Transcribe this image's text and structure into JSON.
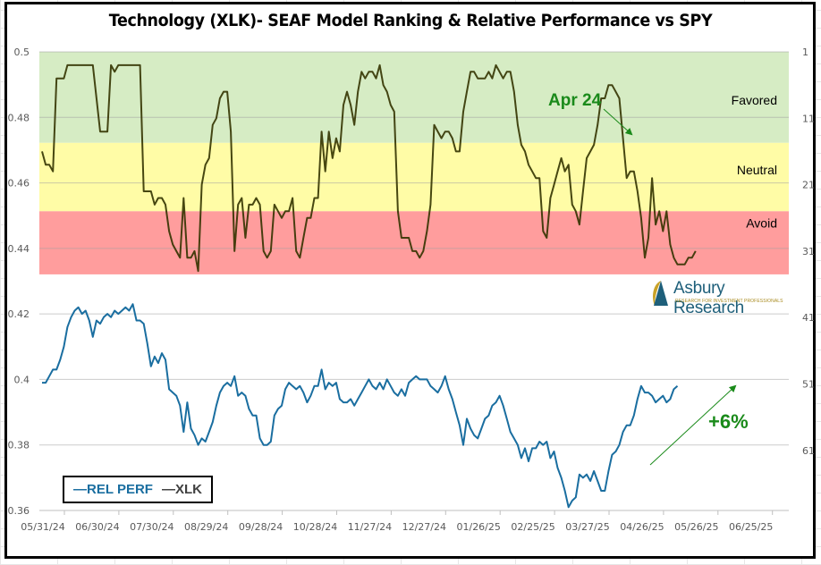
{
  "chart_data": {
    "type": "line",
    "title": "Technology (XLK)- SEAF Model Ranking & Relative Performance vs SPY",
    "xlabel": "",
    "ylabel_left": "",
    "ylabel_right": "",
    "x_tick_labels": [
      "05/31/24",
      "06/30/24",
      "07/30/24",
      "08/29/24",
      "09/28/24",
      "10/28/24",
      "11/27/24",
      "12/27/24",
      "01/26/25",
      "02/25/25",
      "03/27/25",
      "04/26/25",
      "05/26/25",
      "06/25/25"
    ],
    "x_range_days": [
      0,
      400
    ],
    "y_left": {
      "ticks": [
        "0.5",
        "0.48",
        "0.46",
        "0.44",
        "0.42",
        "0.4",
        "0.38",
        "0.36"
      ],
      "ylim": [
        0.36,
        0.5
      ]
    },
    "y_right": {
      "ticks": [
        "1",
        "11",
        "21",
        "31",
        "41",
        "51",
        "61"
      ],
      "ylim_inverted": [
        1,
        69
      ]
    },
    "grid": true,
    "legend_position": "bottom-left",
    "bands": [
      {
        "label": "Favored",
        "rank_from": 1,
        "rank_to": 14.7,
        "color": "#d6ecc4"
      },
      {
        "label": "Neutral",
        "rank_from": 14.7,
        "rank_to": 25,
        "color": "#fffca6"
      },
      {
        "label": "Avoid",
        "rank_from": 25,
        "rank_to": 34.5,
        "color": "#ff9d9d"
      }
    ],
    "series": [
      {
        "name": "REL PERF",
        "axis": "left",
        "color": "#1a6ea0",
        "x_days": [
          0,
          2,
          4,
          6,
          8,
          10,
          12,
          14,
          16,
          18,
          20,
          22,
          24,
          26,
          28,
          30,
          32,
          34,
          36,
          38,
          40,
          42,
          44,
          46,
          48,
          50,
          52,
          54,
          56,
          58,
          60,
          62,
          64,
          66,
          68,
          70,
          72,
          74,
          76,
          78,
          80,
          82,
          84,
          86,
          88,
          90,
          92,
          94,
          96,
          98,
          100,
          102,
          104,
          106,
          108,
          110,
          112,
          114,
          116,
          118,
          120,
          122,
          124,
          126,
          128,
          130,
          132,
          134,
          136,
          138,
          140,
          142,
          144,
          146,
          148,
          150,
          152,
          154,
          156,
          158,
          160,
          162,
          164,
          166,
          168,
          170,
          172,
          174,
          176,
          178,
          180,
          182,
          184,
          186,
          188,
          190,
          192,
          194,
          196,
          198,
          200,
          202,
          204,
          206,
          208,
          210,
          212,
          214,
          216,
          218,
          220,
          222,
          224,
          226,
          228,
          230,
          232,
          234,
          236,
          238,
          240,
          242,
          244,
          246,
          248,
          250,
          252,
          254,
          256,
          258,
          260,
          262,
          264,
          266,
          268,
          270,
          272,
          274,
          276,
          278,
          280,
          282,
          284,
          286,
          288,
          290,
          292,
          294,
          296,
          298,
          300,
          302,
          304,
          306,
          308,
          310,
          312,
          314,
          316,
          318,
          320,
          322,
          324,
          326,
          328,
          330,
          332,
          334,
          336,
          338,
          340,
          342,
          344,
          346,
          348,
          350,
          352,
          354,
          356,
          358,
          360
        ],
        "values": [
          0.399,
          0.399,
          0.401,
          0.403,
          0.403,
          0.406,
          0.41,
          0.416,
          0.419,
          0.421,
          0.422,
          0.42,
          0.421,
          0.418,
          0.413,
          0.418,
          0.417,
          0.419,
          0.42,
          0.419,
          0.421,
          0.42,
          0.421,
          0.422,
          0.421,
          0.423,
          0.418,
          0.418,
          0.417,
          0.411,
          0.404,
          0.407,
          0.405,
          0.408,
          0.406,
          0.397,
          0.396,
          0.395,
          0.392,
          0.384,
          0.393,
          0.385,
          0.383,
          0.38,
          0.382,
          0.381,
          0.384,
          0.387,
          0.392,
          0.396,
          0.398,
          0.399,
          0.398,
          0.401,
          0.395,
          0.396,
          0.395,
          0.391,
          0.389,
          0.389,
          0.382,
          0.38,
          0.38,
          0.381,
          0.389,
          0.391,
          0.392,
          0.397,
          0.399,
          0.398,
          0.397,
          0.398,
          0.396,
          0.393,
          0.395,
          0.398,
          0.398,
          0.403,
          0.397,
          0.399,
          0.398,
          0.399,
          0.394,
          0.393,
          0.393,
          0.394,
          0.392,
          0.394,
          0.396,
          0.398,
          0.4,
          0.398,
          0.397,
          0.399,
          0.397,
          0.4,
          0.398,
          0.396,
          0.395,
          0.397,
          0.395,
          0.399,
          0.4,
          0.401,
          0.4,
          0.4,
          0.4,
          0.398,
          0.397,
          0.396,
          0.398,
          0.401,
          0.397,
          0.394,
          0.39,
          0.386,
          0.38,
          0.388,
          0.385,
          0.383,
          0.382,
          0.385,
          0.388,
          0.389,
          0.392,
          0.393,
          0.395,
          0.392,
          0.388,
          0.384,
          0.382,
          0.38,
          0.376,
          0.379,
          0.375,
          0.379,
          0.379,
          0.381,
          0.38,
          0.381,
          0.376,
          0.378,
          0.373,
          0.37,
          0.366,
          0.361,
          0.363,
          0.364,
          0.371,
          0.37,
          0.371,
          0.369,
          0.372,
          0.369,
          0.366,
          0.366,
          0.372,
          0.377,
          0.378,
          0.38,
          0.384,
          0.386,
          0.386,
          0.389,
          0.394,
          0.398,
          0.396,
          0.396,
          0.395,
          0.393,
          0.394,
          0.395,
          0.393,
          0.394,
          0.397,
          0.398
        ]
      },
      {
        "name": "XLK",
        "axis": "right",
        "color": "#333300",
        "x_days": [
          0,
          2,
          4,
          6,
          8,
          10,
          12,
          14,
          16,
          18,
          20,
          22,
          24,
          26,
          28,
          30,
          32,
          34,
          36,
          38,
          40,
          42,
          44,
          46,
          48,
          50,
          52,
          54,
          56,
          58,
          60,
          62,
          64,
          66,
          68,
          70,
          72,
          74,
          76,
          78,
          80,
          82,
          84,
          86,
          88,
          90,
          92,
          94,
          96,
          98,
          100,
          102,
          104,
          106,
          108,
          110,
          112,
          114,
          116,
          118,
          120,
          122,
          124,
          126,
          128,
          130,
          132,
          134,
          136,
          138,
          140,
          142,
          144,
          146,
          148,
          150,
          152,
          154,
          156,
          158,
          160,
          162,
          164,
          166,
          168,
          170,
          172,
          174,
          176,
          178,
          180,
          182,
          184,
          186,
          188,
          190,
          192,
          194,
          196,
          198,
          200,
          202,
          204,
          206,
          208,
          210,
          212,
          214,
          216,
          218,
          220,
          222,
          224,
          226,
          228,
          230,
          232,
          234,
          236,
          238,
          240,
          242,
          244,
          246,
          248,
          250,
          252,
          254,
          256,
          258,
          260,
          262,
          264,
          266,
          268,
          270,
          272,
          274,
          276,
          278,
          280,
          282,
          284,
          286,
          288,
          290,
          292,
          294,
          296,
          298,
          300,
          302,
          304,
          306,
          308,
          310,
          312,
          314,
          316,
          318,
          320,
          322,
          324,
          326,
          328,
          330,
          332,
          334,
          336,
          338,
          340,
          342,
          344,
          346,
          348,
          350,
          352,
          354,
          356,
          358,
          360
        ],
        "values": [
          16,
          18,
          18,
          19,
          5,
          5,
          5,
          3,
          3,
          3,
          3,
          3,
          3,
          3,
          3,
          8,
          13,
          13,
          13,
          3,
          4,
          3,
          3,
          3,
          3,
          3,
          3,
          3,
          22,
          22,
          22,
          24,
          23,
          23,
          24,
          28,
          30,
          31,
          32,
          23,
          32,
          32,
          31,
          34,
          21,
          18,
          17,
          12,
          11,
          8,
          7,
          7,
          13,
          31,
          24,
          23,
          29,
          24,
          24,
          23,
          24,
          31,
          32,
          31,
          24,
          25,
          26,
          25,
          25,
          23,
          31,
          32,
          29,
          26,
          26,
          23,
          23,
          13,
          19,
          13,
          17,
          14,
          16,
          9,
          7,
          9,
          12,
          7,
          4,
          5,
          4,
          4,
          5,
          3,
          6,
          7,
          9,
          10,
          25,
          29,
          29,
          29,
          31,
          31,
          32,
          31,
          28,
          24,
          12,
          13,
          14,
          13,
          13,
          14,
          16,
          16,
          10,
          7,
          4,
          4,
          5,
          5,
          5,
          4,
          5,
          3,
          4,
          5,
          4,
          4,
          7,
          12,
          15,
          16,
          18,
          19,
          20,
          20,
          28,
          29,
          23,
          21,
          19,
          17,
          19,
          18,
          24,
          25,
          27,
          22,
          17,
          16,
          15,
          12,
          8,
          8,
          6,
          6,
          7,
          8,
          14,
          20,
          19,
          19,
          22,
          26,
          32,
          29,
          20,
          27,
          25,
          28,
          25,
          30,
          32,
          33,
          33,
          33,
          32,
          32,
          31
        ]
      }
    ],
    "annotations": [
      {
        "text": "Apr 24",
        "color": "#1a8a1a"
      },
      {
        "text": "+6%",
        "color": "#1a8a1a"
      }
    ]
  },
  "legend": {
    "rel_perf": "—REL PERF",
    "xlk": "—XLK"
  },
  "logo": {
    "name": "Asbury Research",
    "tagline": "RESEARCH FOR INVESTMENT PROFESSIONALS"
  }
}
